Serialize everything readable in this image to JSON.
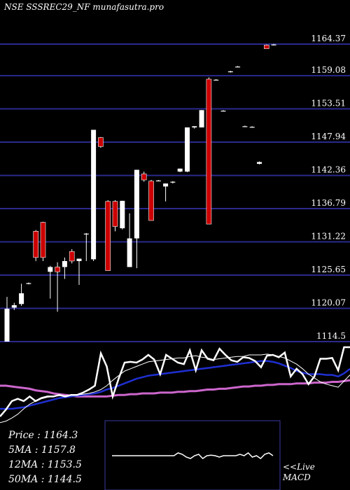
{
  "chart_data": {
    "type": "candlestick",
    "title": "NSE SSSREC29_NF munafasutra.pro",
    "ylim": [
      1114.5,
      1164.37
    ],
    "y_ticks": [
      1164.37,
      1159.08,
      1153.51,
      1147.94,
      1142.36,
      1136.79,
      1131.22,
      1125.65,
      1120.07,
      1114.5
    ],
    "candles": [
      {
        "o": 1114.5,
        "h": 1122.0,
        "l": 1114.5,
        "c": 1120.0,
        "color": "white"
      },
      {
        "o": 1120.2,
        "h": 1121.0,
        "l": 1119.8,
        "c": 1120.6,
        "color": "white"
      },
      {
        "o": 1120.8,
        "h": 1124.2,
        "l": 1120.5,
        "c": 1122.6,
        "color": "white"
      },
      {
        "o": 1124.3,
        "h": 1124.4,
        "l": 1124.1,
        "c": 1124.3,
        "color": "white"
      },
      {
        "o": 1133.0,
        "h": 1133.2,
        "l": 1128.0,
        "c": 1128.6,
        "color": "red"
      },
      {
        "o": 1134.5,
        "h": 1134.6,
        "l": 1128.0,
        "c": 1128.6,
        "color": "red"
      },
      {
        "o": 1127.0,
        "h": 1127.2,
        "l": 1121.7,
        "c": 1126.2,
        "color": "white"
      },
      {
        "o": 1126.2,
        "h": 1127.8,
        "l": 1119.5,
        "c": 1127.0,
        "color": "red"
      },
      {
        "o": 1127.0,
        "h": 1128.6,
        "l": 1125.0,
        "c": 1128.0,
        "color": "white"
      },
      {
        "o": 1129.6,
        "h": 1130.0,
        "l": 1127.6,
        "c": 1128.0,
        "color": "red"
      },
      {
        "o": 1128.0,
        "h": 1128.4,
        "l": 1124.0,
        "c": 1128.4,
        "color": "white"
      },
      {
        "o": 1132.6,
        "h": 1132.7,
        "l": 1128.0,
        "c": 1132.6,
        "color": "white"
      },
      {
        "o": 1128.3,
        "h": 1150.0,
        "l": 1128.0,
        "c": 1150.0,
        "color": "white"
      },
      {
        "o": 1148.7,
        "h": 1148.8,
        "l": 1147.0,
        "c": 1147.2,
        "color": "red"
      },
      {
        "o": 1138.0,
        "h": 1138.2,
        "l": 1126.4,
        "c": 1126.4,
        "color": "red"
      },
      {
        "o": 1138.0,
        "h": 1138.2,
        "l": 1133.0,
        "c": 1133.8,
        "color": "red"
      },
      {
        "o": 1133.5,
        "h": 1138.1,
        "l": 1133.3,
        "c": 1138.1,
        "color": "white"
      },
      {
        "o": 1127.0,
        "h": 1136.0,
        "l": 1127.0,
        "c": 1131.8,
        "color": "white"
      },
      {
        "o": 1131.8,
        "h": 1143.3,
        "l": 1126.8,
        "c": 1143.3,
        "color": "white"
      },
      {
        "o": 1142.6,
        "h": 1143.0,
        "l": 1141.3,
        "c": 1141.6,
        "color": "red"
      },
      {
        "o": 1141.4,
        "h": 1141.6,
        "l": 1134.8,
        "c": 1134.8,
        "color": "red"
      },
      {
        "o": 1141.5,
        "h": 1141.6,
        "l": 1141.4,
        "c": 1141.4,
        "color": "white"
      },
      {
        "o": 1140.5,
        "h": 1141.0,
        "l": 1138.0,
        "c": 1141.0,
        "color": "white"
      },
      {
        "o": 1141.2,
        "h": 1141.4,
        "l": 1141.0,
        "c": 1141.3,
        "color": "white"
      },
      {
        "o": 1143.0,
        "h": 1143.5,
        "l": 1142.9,
        "c": 1143.5,
        "color": "white"
      },
      {
        "o": 1143.0,
        "h": 1150.4,
        "l": 1142.9,
        "c": 1150.4,
        "color": "white"
      },
      {
        "o": 1150.4,
        "h": 1150.6,
        "l": 1150.2,
        "c": 1150.6,
        "color": "white"
      },
      {
        "o": 1150.4,
        "h": 1153.3,
        "l": 1150.4,
        "c": 1153.3,
        "color": "white"
      },
      {
        "o": 1158.5,
        "h": 1158.8,
        "l": 1134.2,
        "c": 1134.2,
        "color": "red"
      },
      {
        "o": 1158.4,
        "h": 1158.5,
        "l": 1158.3,
        "c": 1158.4,
        "color": "white"
      },
      {
        "o": 1153.2,
        "h": 1153.3,
        "l": 1153.1,
        "c": 1153.1,
        "color": "white"
      },
      {
        "o": 1159.8,
        "h": 1159.9,
        "l": 1159.6,
        "c": 1159.7,
        "color": "white"
      },
      {
        "o": 1160.6,
        "h": 1160.7,
        "l": 1160.5,
        "c": 1160.6,
        "color": "white"
      },
      {
        "o": 1150.6,
        "h": 1150.7,
        "l": 1150.5,
        "c": 1150.6,
        "color": "white"
      },
      {
        "o": 1150.5,
        "h": 1150.6,
        "l": 1150.4,
        "c": 1150.5,
        "color": "white"
      },
      {
        "o": 1144.6,
        "h": 1144.7,
        "l": 1144.2,
        "c": 1144.3,
        "color": "white"
      },
      {
        "o": 1164.2,
        "h": 1164.3,
        "l": 1163.6,
        "c": 1163.6,
        "color": "red"
      },
      {
        "o": 1164.3,
        "h": 1164.4,
        "l": 1164.2,
        "c": 1164.3,
        "color": "white"
      }
    ],
    "lower_panel": {
      "price_line": [
        0.9,
        0.81,
        0.7,
        0.67,
        0.7,
        0.64,
        0.7,
        0.66,
        0.64,
        0.64,
        0.62,
        0.64,
        0.62,
        0.62,
        0.59,
        0.55,
        0.5,
        0.08,
        0.25,
        0.64,
        0.41,
        0.2,
        0.19,
        0.2,
        0.16,
        0.1,
        0.16,
        0.35,
        0.1,
        0.15,
        0.2,
        0.22,
        0.04,
        0.3,
        0.04,
        0.15,
        0.17,
        0.02,
        0.1,
        0.17,
        0.19,
        0.13,
        0.14,
        0.18,
        0.26,
        0.11,
        0.1,
        0.13,
        0.07,
        0.38,
        0.28,
        0.35,
        0.48,
        0.38,
        0.15,
        0.15,
        0.14,
        0.3,
        0.0,
        0.0
      ],
      "ma_short": [
        0.98,
        0.96,
        0.92,
        0.87,
        0.8,
        0.74,
        0.7,
        0.67,
        0.65,
        0.64,
        0.63,
        0.63,
        0.62,
        0.62,
        0.61,
        0.6,
        0.58,
        0.55,
        0.5,
        0.43,
        0.37,
        0.31,
        0.28,
        0.25,
        0.22,
        0.19,
        0.18,
        0.17,
        0.16,
        0.15,
        0.14,
        0.14,
        0.12,
        0.11,
        0.13,
        0.14,
        0.16,
        0.15,
        0.14,
        0.13,
        0.12,
        0.12,
        0.1,
        0.1,
        0.1,
        0.09,
        0.1,
        0.12,
        0.14,
        0.18,
        0.22,
        0.28,
        0.35,
        0.4,
        0.45,
        0.48,
        0.5,
        0.52,
        0.44,
        0.36
      ],
      "ma_mid": [
        0.8,
        0.8,
        0.8,
        0.79,
        0.78,
        0.76,
        0.74,
        0.72,
        0.7,
        0.68,
        0.66,
        0.65,
        0.64,
        0.63,
        0.62,
        0.61,
        0.6,
        0.58,
        0.55,
        0.53,
        0.5,
        0.47,
        0.44,
        0.41,
        0.39,
        0.37,
        0.36,
        0.35,
        0.34,
        0.33,
        0.32,
        0.31,
        0.3,
        0.29,
        0.28,
        0.27,
        0.26,
        0.25,
        0.24,
        0.23,
        0.22,
        0.21,
        0.2,
        0.19,
        0.18,
        0.18,
        0.19,
        0.21,
        0.24,
        0.27,
        0.31,
        0.33,
        0.35,
        0.35,
        0.35,
        0.36,
        0.36,
        0.38,
        0.34,
        0.28
      ],
      "ma_long": [
        0.5,
        0.5,
        0.51,
        0.52,
        0.53,
        0.54,
        0.56,
        0.57,
        0.58,
        0.6,
        0.61,
        0.62,
        0.63,
        0.64,
        0.64,
        0.64,
        0.64,
        0.64,
        0.64,
        0.63,
        0.62,
        0.62,
        0.61,
        0.61,
        0.6,
        0.6,
        0.6,
        0.59,
        0.59,
        0.59,
        0.58,
        0.58,
        0.57,
        0.57,
        0.56,
        0.55,
        0.55,
        0.54,
        0.54,
        0.53,
        0.52,
        0.51,
        0.51,
        0.5,
        0.5,
        0.49,
        0.49,
        0.48,
        0.48,
        0.48,
        0.47,
        0.47,
        0.47,
        0.46,
        0.46,
        0.46,
        0.45,
        0.45,
        0.44,
        0.43
      ],
      "macd_line": [
        0.5,
        0.5,
        0.5,
        0.5,
        0.5,
        0.5,
        0.5,
        0.5,
        0.5,
        0.5,
        0.5,
        0.5,
        0.5,
        0.5,
        0.5,
        0.5,
        0.4,
        0.45,
        0.55,
        0.6,
        0.5,
        0.45,
        0.6,
        0.5,
        0.48,
        0.5,
        0.55,
        0.5,
        0.5,
        0.5,
        0.5,
        0.45,
        0.5,
        0.4,
        0.55,
        0.5,
        0.6,
        0.45,
        0.4,
        0.5
      ]
    }
  },
  "legend": {
    "price": "Price   : 1164.3",
    "ma5": "5MA : 1157.8",
    "ma12": "12MA : 1153.5",
    "ma50": "50MA : 1144.5"
  },
  "live_label": "<<Live",
  "macd_label": "MACD",
  "colors": {
    "background": "#000000",
    "grid_line": "#2a2a8c",
    "candle_up": "#ffffff",
    "candle_down": "#cc0000",
    "ma_short": "#ffffff",
    "ma_mid": "#1f2fd1",
    "ma_long": "#cc66cc",
    "price_line": "#ffffff",
    "macd_box_border": "#3a3aa0"
  }
}
